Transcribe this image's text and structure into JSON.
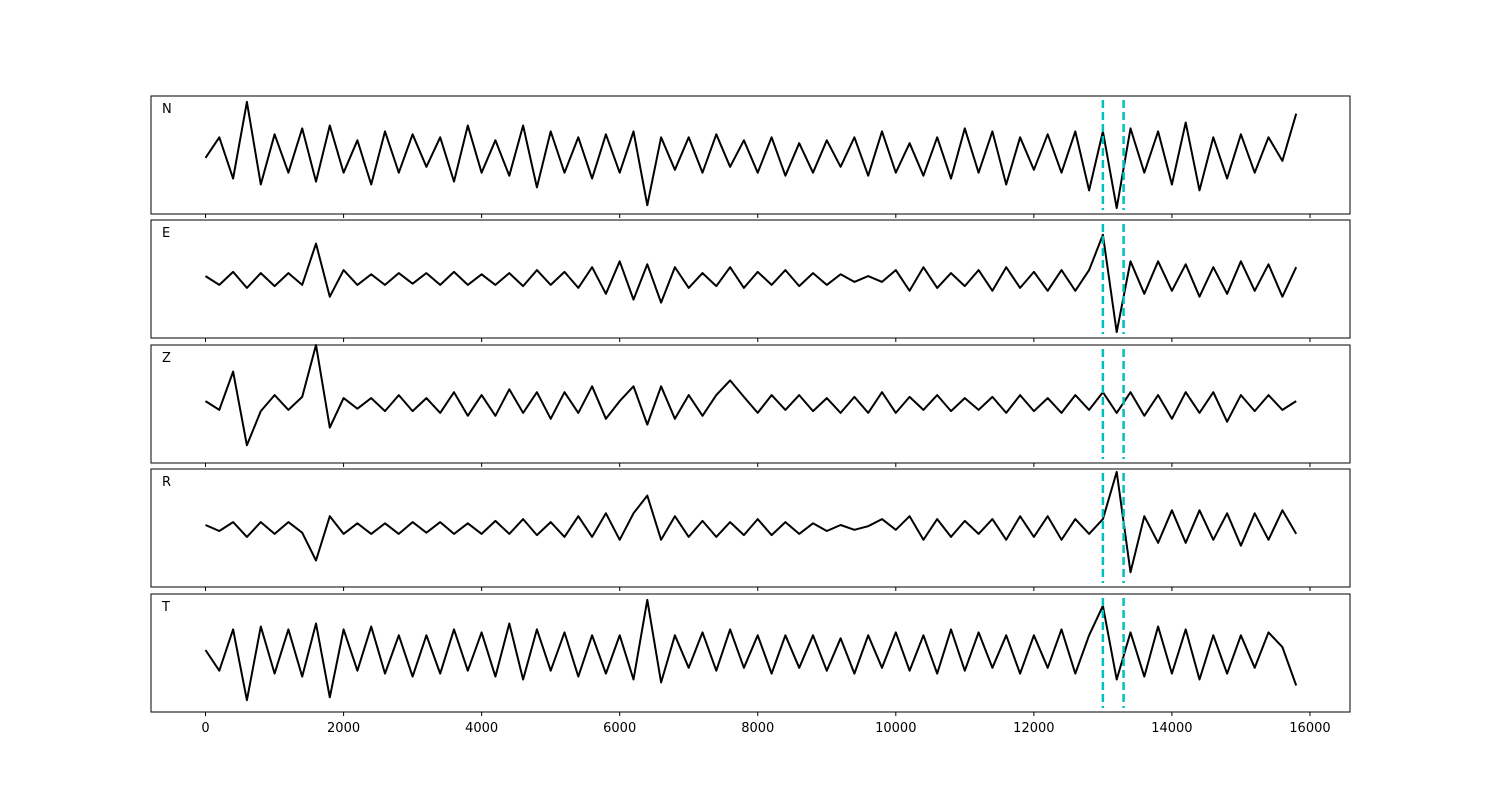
{
  "chart_data": {
    "type": "line",
    "x": [
      0,
      200,
      400,
      600,
      800,
      1000,
      1200,
      1400,
      1600,
      1800,
      2000,
      2200,
      2400,
      2600,
      2800,
      3000,
      3200,
      3400,
      3600,
      3800,
      4000,
      4200,
      4400,
      4600,
      4800,
      5000,
      5200,
      5400,
      5600,
      5800,
      6000,
      6200,
      6400,
      6600,
      6800,
      7000,
      7200,
      7400,
      7600,
      7800,
      8000,
      8200,
      8400,
      8600,
      8800,
      9000,
      9200,
      9400,
      9600,
      9800,
      10000,
      10200,
      10400,
      10600,
      10800,
      11000,
      11200,
      11400,
      11600,
      11800,
      12000,
      12200,
      12400,
      12600,
      12800,
      13000,
      13200,
      13400,
      13600,
      13800,
      14000,
      14200,
      14400,
      14600,
      14800,
      15000,
      15200,
      15400,
      15600,
      15800
    ],
    "series": [
      {
        "name": "N",
        "color": "#000000",
        "values": [
          -0.05,
          0.3,
          -0.4,
          0.9,
          -0.5,
          0.35,
          -0.3,
          0.45,
          -0.45,
          0.5,
          -0.3,
          0.25,
          -0.5,
          0.4,
          -0.3,
          0.35,
          -0.2,
          0.3,
          -0.45,
          0.5,
          -0.3,
          0.25,
          -0.35,
          0.5,
          -0.55,
          0.4,
          -0.3,
          0.3,
          -0.4,
          0.35,
          -0.3,
          0.4,
          -0.85,
          0.3,
          -0.25,
          0.3,
          -0.3,
          0.35,
          -0.2,
          0.25,
          -0.3,
          0.3,
          -0.35,
          0.2,
          -0.3,
          0.25,
          -0.2,
          0.3,
          -0.35,
          0.4,
          -0.3,
          0.2,
          -0.35,
          0.3,
          -0.4,
          0.45,
          -0.3,
          0.4,
          -0.5,
          0.3,
          -0.25,
          0.35,
          -0.3,
          0.4,
          -0.6,
          0.4,
          -0.9,
          0.45,
          -0.3,
          0.4,
          -0.5,
          0.55,
          -0.6,
          0.3,
          -0.4,
          0.35,
          -0.3,
          0.3,
          -0.1,
          0.7
        ]
      },
      {
        "name": "E",
        "color": "#000000",
        "values": [
          0.05,
          -0.1,
          0.12,
          -0.15,
          0.1,
          -0.12,
          0.1,
          -0.1,
          0.6,
          -0.3,
          0.15,
          -0.1,
          0.08,
          -0.1,
          0.1,
          -0.08,
          0.1,
          -0.1,
          0.12,
          -0.1,
          0.08,
          -0.1,
          0.1,
          -0.12,
          0.15,
          -0.1,
          0.12,
          -0.15,
          0.2,
          -0.25,
          0.3,
          -0.35,
          0.25,
          -0.4,
          0.2,
          -0.15,
          0.1,
          -0.12,
          0.2,
          -0.15,
          0.12,
          -0.1,
          0.15,
          -0.12,
          0.1,
          -0.1,
          0.08,
          -0.05,
          0.05,
          -0.05,
          0.15,
          -0.2,
          0.2,
          -0.15,
          0.1,
          -0.12,
          0.15,
          -0.2,
          0.2,
          -0.15,
          0.12,
          -0.2,
          0.15,
          -0.2,
          0.15,
          0.75,
          -0.9,
          0.3,
          -0.25,
          0.3,
          -0.2,
          0.25,
          -0.3,
          0.2,
          -0.25,
          0.3,
          -0.2,
          0.25,
          -0.3,
          0.2
        ]
      },
      {
        "name": "Z",
        "color": "#000000",
        "values": [
          0.05,
          -0.1,
          0.55,
          -0.7,
          -0.12,
          0.15,
          -0.1,
          0.12,
          1.0,
          -0.4,
          0.1,
          -0.08,
          0.1,
          -0.12,
          0.15,
          -0.12,
          0.1,
          -0.15,
          0.2,
          -0.2,
          0.15,
          -0.2,
          0.25,
          -0.15,
          0.2,
          -0.25,
          0.2,
          -0.15,
          0.3,
          -0.25,
          0.05,
          0.3,
          -0.35,
          0.3,
          -0.25,
          0.15,
          -0.2,
          0.15,
          0.4,
          0.12,
          -0.15,
          0.15,
          -0.1,
          0.15,
          -0.12,
          0.1,
          -0.15,
          0.12,
          -0.15,
          0.2,
          -0.15,
          0.12,
          -0.1,
          0.15,
          -0.12,
          0.1,
          -0.1,
          0.12,
          -0.15,
          0.15,
          -0.12,
          0.1,
          -0.15,
          0.15,
          -0.1,
          0.2,
          -0.15,
          0.2,
          -0.2,
          0.15,
          -0.25,
          0.2,
          -0.15,
          0.2,
          -0.3,
          0.15,
          -0.12,
          0.15,
          -0.1,
          0.05
        ]
      },
      {
        "name": "R",
        "color": "#000000",
        "values": [
          0.05,
          -0.05,
          0.1,
          -0.15,
          0.1,
          -0.1,
          0.1,
          -0.08,
          -0.55,
          0.2,
          -0.1,
          0.08,
          -0.1,
          0.08,
          -0.1,
          0.1,
          -0.08,
          0.1,
          -0.1,
          0.08,
          -0.1,
          0.12,
          -0.1,
          0.15,
          -0.12,
          0.1,
          -0.15,
          0.2,
          -0.15,
          0.25,
          -0.2,
          0.25,
          0.55,
          -0.2,
          0.2,
          -0.15,
          0.12,
          -0.15,
          0.1,
          -0.12,
          0.15,
          -0.12,
          0.1,
          -0.1,
          0.08,
          -0.05,
          0.05,
          -0.03,
          0.03,
          0.15,
          -0.03,
          0.2,
          -0.2,
          0.15,
          -0.15,
          0.12,
          -0.1,
          0.15,
          -0.2,
          0.2,
          -0.15,
          0.2,
          -0.2,
          0.15,
          -0.1,
          0.15,
          0.95,
          -0.75,
          0.2,
          -0.25,
          0.3,
          -0.25,
          0.3,
          -0.2,
          0.25,
          -0.3,
          0.25,
          -0.2,
          0.3,
          -0.1
        ]
      },
      {
        "name": "T",
        "color": "#000000",
        "values": [
          0.05,
          -0.3,
          0.4,
          -0.8,
          0.45,
          -0.35,
          0.4,
          -0.4,
          0.5,
          -0.75,
          0.4,
          -0.3,
          0.45,
          -0.35,
          0.3,
          -0.4,
          0.3,
          -0.35,
          0.4,
          -0.3,
          0.35,
          -0.4,
          0.5,
          -0.45,
          0.4,
          -0.3,
          0.35,
          -0.4,
          0.3,
          -0.35,
          0.3,
          -0.45,
          0.9,
          -0.5,
          0.3,
          -0.25,
          0.35,
          -0.3,
          0.4,
          -0.25,
          0.3,
          -0.35,
          0.3,
          -0.25,
          0.3,
          -0.3,
          0.25,
          -0.35,
          0.3,
          -0.25,
          0.35,
          -0.3,
          0.3,
          -0.35,
          0.4,
          -0.3,
          0.35,
          -0.25,
          0.3,
          -0.35,
          0.3,
          -0.25,
          0.4,
          -0.35,
          0.3,
          0.8,
          -0.45,
          0.35,
          -0.4,
          0.45,
          -0.35,
          0.4,
          -0.45,
          0.3,
          -0.35,
          0.3,
          -0.25,
          0.35,
          0.1,
          -0.55
        ]
      }
    ],
    "vlines": [
      13000,
      13300
    ],
    "vline_color": "#00bfbf",
    "xlim": [
      -790,
      16580
    ],
    "xticks": [
      0,
      2000,
      4000,
      6000,
      8000,
      10000,
      12000,
      14000,
      16000
    ],
    "ylim": [
      -1,
      1
    ]
  }
}
